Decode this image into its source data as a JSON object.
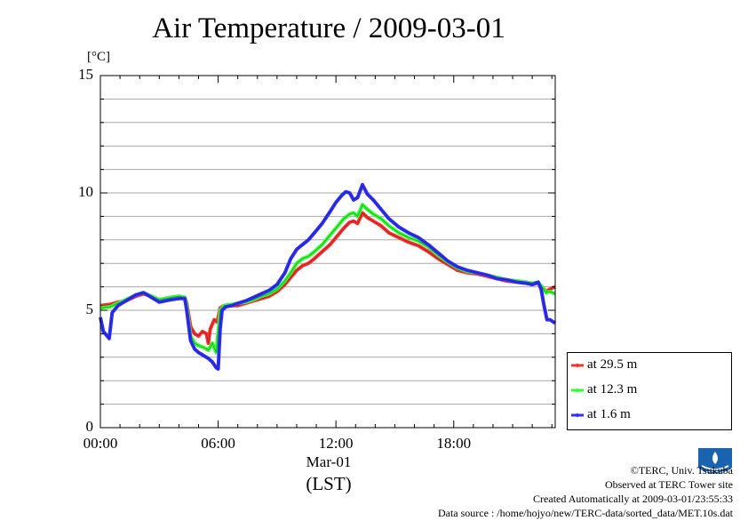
{
  "chart_data": {
    "type": "line",
    "title": "Air Temperature / 2009-03-01",
    "ylabel": "[°C]",
    "xlabel": "(LST)",
    "date_label": "Mar-01",
    "ylim": [
      0,
      15
    ],
    "xlim": [
      0,
      23.17
    ],
    "yticks": [
      {
        "value": 0,
        "label": "0"
      },
      {
        "value": 5,
        "label": "5"
      },
      {
        "value": 10,
        "label": "10"
      },
      {
        "value": 15,
        "label": "15"
      }
    ],
    "xticks": [
      {
        "value": 0,
        "label": "00:00"
      },
      {
        "value": 6,
        "label": "06:00"
      },
      {
        "value": 12,
        "label": "12:00"
      },
      {
        "value": 18,
        "label": "18:00"
      }
    ],
    "grid": true,
    "legend_position": "right",
    "series": [
      {
        "name": "at 29.5 m",
        "color": "#ff3030",
        "points": [
          [
            0,
            5.2
          ],
          [
            0.5,
            5.25
          ],
          [
            0.9,
            5.35
          ],
          [
            1.3,
            5.4
          ],
          [
            1.8,
            5.6
          ],
          [
            2.2,
            5.7
          ],
          [
            2.6,
            5.6
          ],
          [
            3.0,
            5.45
          ],
          [
            3.6,
            5.55
          ],
          [
            4.0,
            5.6
          ],
          [
            4.3,
            5.55
          ],
          [
            4.4,
            5.3
          ],
          [
            4.6,
            4.3
          ],
          [
            4.8,
            4.0
          ],
          [
            5.0,
            3.9
          ],
          [
            5.2,
            4.1
          ],
          [
            5.4,
            4.0
          ],
          [
            5.5,
            3.6
          ],
          [
            5.6,
            4.2
          ],
          [
            5.8,
            4.6
          ],
          [
            5.95,
            4.5
          ],
          [
            6.1,
            5.1
          ],
          [
            6.3,
            5.2
          ],
          [
            6.7,
            5.2
          ],
          [
            7.0,
            5.2
          ],
          [
            7.4,
            5.3
          ],
          [
            7.8,
            5.4
          ],
          [
            8.2,
            5.5
          ],
          [
            8.6,
            5.6
          ],
          [
            9.0,
            5.8
          ],
          [
            9.4,
            6.1
          ],
          [
            9.7,
            6.4
          ],
          [
            10.0,
            6.7
          ],
          [
            10.3,
            6.9
          ],
          [
            10.6,
            7.0
          ],
          [
            10.9,
            7.2
          ],
          [
            11.3,
            7.5
          ],
          [
            11.7,
            7.8
          ],
          [
            12.1,
            8.2
          ],
          [
            12.4,
            8.5
          ],
          [
            12.7,
            8.75
          ],
          [
            12.9,
            8.8
          ],
          [
            13.1,
            8.7
          ],
          [
            13.35,
            9.15
          ],
          [
            13.6,
            8.95
          ],
          [
            13.9,
            8.8
          ],
          [
            14.3,
            8.6
          ],
          [
            14.7,
            8.3
          ],
          [
            15.2,
            8.1
          ],
          [
            15.7,
            7.9
          ],
          [
            16.2,
            7.75
          ],
          [
            16.7,
            7.5
          ],
          [
            17.2,
            7.2
          ],
          [
            17.7,
            6.95
          ],
          [
            18.2,
            6.7
          ],
          [
            18.7,
            6.6
          ],
          [
            19.2,
            6.55
          ],
          [
            19.7,
            6.45
          ],
          [
            20.2,
            6.35
          ],
          [
            20.7,
            6.25
          ],
          [
            21.2,
            6.2
          ],
          [
            21.7,
            6.15
          ],
          [
            22.0,
            6.1
          ],
          [
            22.3,
            6.15
          ],
          [
            22.5,
            6.0
          ],
          [
            22.7,
            5.8
          ],
          [
            22.9,
            5.9
          ],
          [
            23.17,
            6.0
          ]
        ]
      },
      {
        "name": "at 12.3 m",
        "color": "#30ff30",
        "points": [
          [
            0,
            5.1
          ],
          [
            0.5,
            5.15
          ],
          [
            0.9,
            5.3
          ],
          [
            1.3,
            5.45
          ],
          [
            1.8,
            5.65
          ],
          [
            2.2,
            5.75
          ],
          [
            2.6,
            5.6
          ],
          [
            3.0,
            5.45
          ],
          [
            3.6,
            5.55
          ],
          [
            4.0,
            5.6
          ],
          [
            4.3,
            5.55
          ],
          [
            4.4,
            5.2
          ],
          [
            4.6,
            3.9
          ],
          [
            4.8,
            3.6
          ],
          [
            5.0,
            3.5
          ],
          [
            5.3,
            3.4
          ],
          [
            5.5,
            3.3
          ],
          [
            5.7,
            3.6
          ],
          [
            5.9,
            3.2
          ],
          [
            6.1,
            5.0
          ],
          [
            6.3,
            5.2
          ],
          [
            6.7,
            5.25
          ],
          [
            7.0,
            5.3
          ],
          [
            7.4,
            5.35
          ],
          [
            7.8,
            5.45
          ],
          [
            8.2,
            5.6
          ],
          [
            8.6,
            5.7
          ],
          [
            9.0,
            5.9
          ],
          [
            9.4,
            6.25
          ],
          [
            9.7,
            6.6
          ],
          [
            10.0,
            7.0
          ],
          [
            10.3,
            7.2
          ],
          [
            10.6,
            7.3
          ],
          [
            10.9,
            7.5
          ],
          [
            11.3,
            7.8
          ],
          [
            11.7,
            8.2
          ],
          [
            12.1,
            8.6
          ],
          [
            12.4,
            8.9
          ],
          [
            12.7,
            9.1
          ],
          [
            12.9,
            9.15
          ],
          [
            13.1,
            9.0
          ],
          [
            13.35,
            9.5
          ],
          [
            13.6,
            9.3
          ],
          [
            13.9,
            9.1
          ],
          [
            14.3,
            8.9
          ],
          [
            14.7,
            8.6
          ],
          [
            15.2,
            8.3
          ],
          [
            15.7,
            8.1
          ],
          [
            16.2,
            7.95
          ],
          [
            16.7,
            7.7
          ],
          [
            17.2,
            7.35
          ],
          [
            17.7,
            7.05
          ],
          [
            18.2,
            6.8
          ],
          [
            18.7,
            6.65
          ],
          [
            19.2,
            6.6
          ],
          [
            19.7,
            6.5
          ],
          [
            20.2,
            6.4
          ],
          [
            20.7,
            6.3
          ],
          [
            21.2,
            6.25
          ],
          [
            21.7,
            6.2
          ],
          [
            22.0,
            6.15
          ],
          [
            22.3,
            6.2
          ],
          [
            22.5,
            6.0
          ],
          [
            22.7,
            5.75
          ],
          [
            22.9,
            5.8
          ],
          [
            23.17,
            5.7
          ]
        ]
      },
      {
        "name": "at 1.6 m",
        "color": "#3030ff",
        "points": [
          [
            0,
            4.7
          ],
          [
            0.15,
            4.1
          ],
          [
            0.35,
            3.9
          ],
          [
            0.45,
            3.8
          ],
          [
            0.6,
            4.9
          ],
          [
            0.9,
            5.2
          ],
          [
            1.3,
            5.4
          ],
          [
            1.8,
            5.65
          ],
          [
            2.2,
            5.75
          ],
          [
            2.6,
            5.55
          ],
          [
            3.0,
            5.35
          ],
          [
            3.6,
            5.45
          ],
          [
            4.0,
            5.5
          ],
          [
            4.3,
            5.5
          ],
          [
            4.4,
            5.0
          ],
          [
            4.6,
            3.7
          ],
          [
            4.8,
            3.35
          ],
          [
            5.0,
            3.2
          ],
          [
            5.3,
            3.05
          ],
          [
            5.5,
            2.95
          ],
          [
            5.7,
            2.8
          ],
          [
            5.9,
            2.55
          ],
          [
            6.0,
            2.5
          ],
          [
            6.1,
            4.2
          ],
          [
            6.2,
            5.0
          ],
          [
            6.4,
            5.15
          ],
          [
            6.7,
            5.2
          ],
          [
            7.0,
            5.3
          ],
          [
            7.4,
            5.4
          ],
          [
            7.8,
            5.55
          ],
          [
            8.2,
            5.7
          ],
          [
            8.6,
            5.85
          ],
          [
            9.0,
            6.1
          ],
          [
            9.4,
            6.6
          ],
          [
            9.7,
            7.2
          ],
          [
            10.0,
            7.6
          ],
          [
            10.3,
            7.8
          ],
          [
            10.6,
            8.0
          ],
          [
            10.9,
            8.3
          ],
          [
            11.3,
            8.7
          ],
          [
            11.7,
            9.2
          ],
          [
            12.0,
            9.6
          ],
          [
            12.3,
            9.9
          ],
          [
            12.5,
            10.05
          ],
          [
            12.7,
            10.0
          ],
          [
            12.9,
            9.7
          ],
          [
            13.1,
            9.8
          ],
          [
            13.35,
            10.35
          ],
          [
            13.6,
            9.95
          ],
          [
            13.9,
            9.7
          ],
          [
            14.3,
            9.3
          ],
          [
            14.7,
            8.9
          ],
          [
            15.2,
            8.55
          ],
          [
            15.7,
            8.3
          ],
          [
            16.2,
            8.1
          ],
          [
            16.7,
            7.8
          ],
          [
            17.2,
            7.45
          ],
          [
            17.7,
            7.1
          ],
          [
            18.2,
            6.85
          ],
          [
            18.7,
            6.7
          ],
          [
            19.2,
            6.6
          ],
          [
            19.7,
            6.5
          ],
          [
            20.2,
            6.35
          ],
          [
            20.7,
            6.3
          ],
          [
            21.2,
            6.2
          ],
          [
            21.7,
            6.15
          ],
          [
            22.0,
            6.1
          ],
          [
            22.3,
            6.2
          ],
          [
            22.45,
            5.9
          ],
          [
            22.6,
            5.2
          ],
          [
            22.75,
            4.6
          ],
          [
            22.9,
            4.6
          ],
          [
            23.17,
            4.45
          ]
        ]
      }
    ]
  },
  "credits": {
    "copyright": "©TERC, Univ. Tsukuba",
    "observed": "Observed at TERC Tower site",
    "created": "Created Automatically at 2009-03-01/23:55:33",
    "source": "Data source : /home/hojyo/new/TERC-data/sorted_data/MET.10s.dat"
  },
  "logo": {
    "text": "TERC",
    "icon": "terc-logo-icon"
  }
}
